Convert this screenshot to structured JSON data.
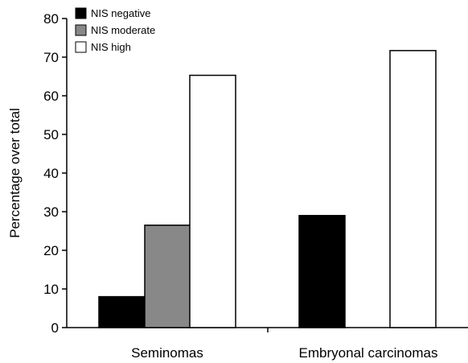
{
  "chart_data": {
    "type": "bar",
    "title": "",
    "xlabel": "",
    "ylabel": "Percentage over total",
    "ylim": [
      0,
      80
    ],
    "yticks": [
      0,
      10,
      20,
      30,
      40,
      50,
      60,
      70,
      80
    ],
    "categories": [
      "Seminomas",
      "Embryonal carcinomas"
    ],
    "series": [
      {
        "name": "NIS negative",
        "color": "#000000",
        "values": [
          8,
          29
        ]
      },
      {
        "name": "NIS moderate",
        "color": "#888888",
        "values": [
          26.5,
          0
        ]
      },
      {
        "name": "NIS high",
        "color": "#ffffff",
        "values": [
          65.3,
          71.7
        ]
      }
    ],
    "grid": false,
    "legend_position": "top-left"
  }
}
